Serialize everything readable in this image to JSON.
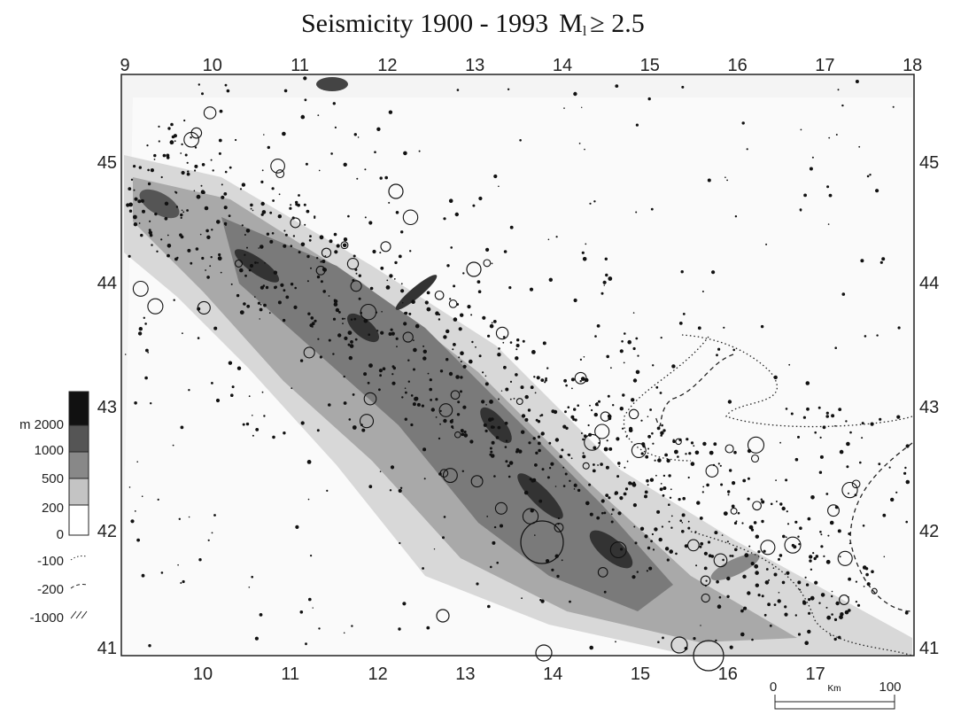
{
  "title": {
    "text": "Seismicity  1900 - 1993",
    "magnitude": "M",
    "subscript": "l",
    "threshold": "≥  2.5"
  },
  "axes": {
    "top": [
      "9",
      "10",
      "11",
      "12",
      "13",
      "14",
      "15",
      "16",
      "17",
      "18"
    ],
    "bottom": [
      "10",
      "11",
      "12",
      "13",
      "14",
      "15",
      "16",
      "17"
    ],
    "left": [
      "45",
      "44",
      "43",
      "42",
      "41"
    ],
    "right": [
      "45",
      "44",
      "43",
      "42",
      "41"
    ]
  },
  "legend": {
    "levels": [
      "m 2000",
      "1000",
      "500",
      "200",
      "0"
    ],
    "contours": [
      "-100",
      "-200",
      "-1000"
    ]
  },
  "scale_bar": {
    "start": "0",
    "unit": "Km",
    "end": "100"
  }
}
